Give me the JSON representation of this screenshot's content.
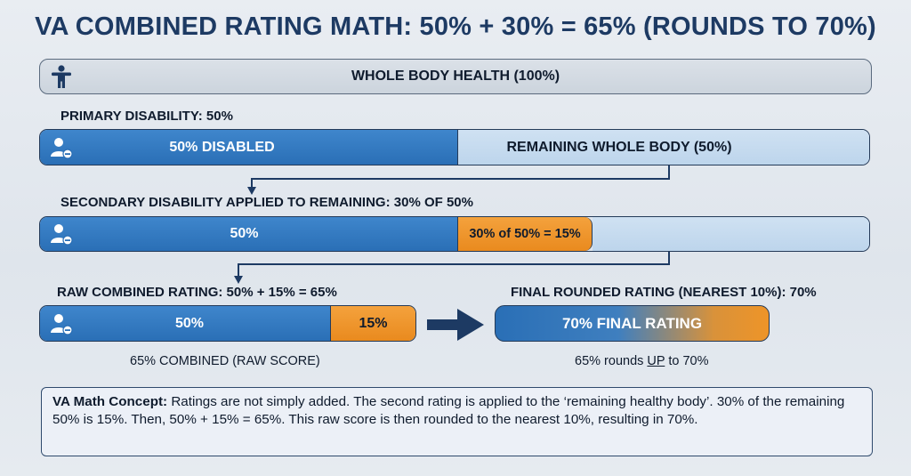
{
  "title": "VA COMBINED RATING MATH: 50% + 30% = 65% (ROUNDS TO 70%)",
  "whole_body": {
    "label": "WHOLE BODY HEALTH (100%)",
    "icon": "person-icon"
  },
  "primary": {
    "heading": "PRIMARY DISABILITY: 50%",
    "disabled_label": "50% DISABLED",
    "remaining_label": "REMAINING WHOLE BODY (50%)",
    "disabled_fraction": 0.5,
    "icon": "user-minus-icon"
  },
  "secondary": {
    "heading": "SECONDARY DISABILITY APPLIED TO REMAINING: 30% OF 50%",
    "primary_label": "50%",
    "applied_label": "30% of 50% = 15%",
    "icon": "user-minus-icon"
  },
  "raw": {
    "heading": "RAW COMBINED RATING: 50% + 15% = 65%",
    "primary_label": "50%",
    "added_label": "15%",
    "caption": "65% COMBINED (RAW SCORE)",
    "icon": "user-minus-icon"
  },
  "final": {
    "heading": "FINAL ROUNDED RATING (NEAREST 10%): 70%",
    "bar_label": "70% FINAL RATING",
    "caption_pre": "65% rounds ",
    "caption_up": "UP",
    "caption_post": " to 70%",
    "arrow_icon": "right-arrow-icon"
  },
  "concept": {
    "title": "VA Math Concept:",
    "text": "Ratings are not simply added. The second rating is applied to the ‘remaining healthy body’. 30% of the remaining 50% is 15%. Then, 50% + 15% = 65%. This raw score is then rounded to the nearest 10%, resulting in 70%."
  },
  "colors": {
    "blue": "#2f76bd",
    "light_blue": "#c6dbef",
    "orange": "#ee9428",
    "navy": "#1d3a63"
  }
}
